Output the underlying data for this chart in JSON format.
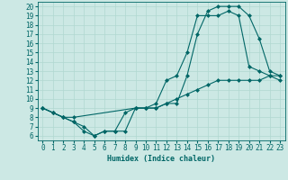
{
  "xlabel": "Humidex (Indice chaleur)",
  "ylabel": "",
  "bg_color": "#cce8e4",
  "grid_color": "#b0d8d0",
  "line_color": "#006666",
  "xlim": [
    -0.5,
    23.5
  ],
  "ylim": [
    5.5,
    20.5
  ],
  "xticks": [
    0,
    1,
    2,
    3,
    4,
    5,
    6,
    7,
    8,
    9,
    10,
    11,
    12,
    13,
    14,
    15,
    16,
    17,
    18,
    19,
    20,
    21,
    22,
    23
  ],
  "yticks": [
    6,
    7,
    8,
    9,
    10,
    11,
    12,
    13,
    14,
    15,
    16,
    17,
    18,
    19,
    20
  ],
  "line1": {
    "x": [
      0,
      1,
      2,
      3,
      4,
      5,
      6,
      7,
      8,
      9,
      10,
      11,
      12,
      13,
      14,
      15,
      16,
      17,
      18,
      19,
      20,
      21,
      22,
      23
    ],
    "y": [
      9,
      8.5,
      8,
      7.5,
      6.5,
      6,
      6.5,
      6.5,
      6.5,
      9,
      9,
      9.5,
      12,
      12.5,
      15,
      19,
      19,
      19,
      19.5,
      19,
      13.5,
      13,
      12.5,
      12
    ]
  },
  "line2": {
    "x": [
      0,
      1,
      2,
      3,
      4,
      5,
      6,
      7,
      8,
      9,
      10,
      11,
      12,
      13,
      14,
      15,
      16,
      17,
      18,
      19,
      20,
      21,
      22,
      23
    ],
    "y": [
      9,
      8.5,
      8,
      7.5,
      7,
      6,
      6.5,
      6.5,
      8.5,
      9,
      9,
      9,
      9.5,
      9.5,
      12.5,
      17,
      19.5,
      20,
      20,
      20,
      19,
      16.5,
      13,
      12.5
    ]
  },
  "line3": {
    "x": [
      0,
      1,
      2,
      3,
      9,
      10,
      11,
      12,
      13,
      14,
      15,
      16,
      17,
      18,
      19,
      20,
      21,
      22,
      23
    ],
    "y": [
      9,
      8.5,
      8,
      8,
      9,
      9,
      9,
      9.5,
      10,
      10.5,
      11,
      11.5,
      12,
      12,
      12,
      12,
      12,
      12.5,
      12.5
    ]
  }
}
